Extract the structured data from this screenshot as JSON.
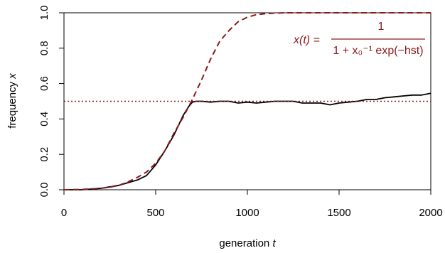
{
  "chart_data": {
    "type": "line",
    "xlabel": "generation",
    "xlabel_var": "t",
    "ylabel": "frequency",
    "ylabel_var": "x",
    "xlim": [
      0,
      2000
    ],
    "ylim": [
      0,
      1
    ],
    "x_ticks": [
      0,
      500,
      1000,
      1500,
      2000
    ],
    "y_ticks": [
      0.0,
      0.2,
      0.4,
      0.6,
      0.8,
      1.0
    ],
    "y_tick_labels": [
      "0.0",
      "0.2",
      "0.4",
      "0.6",
      "0.8",
      "1.0"
    ],
    "colors": {
      "theory": "#8b1a1a",
      "simulation": "#000000"
    },
    "equation": {
      "lhs": "x(t) =",
      "numerator": "1",
      "denominator": "1 + x₀⁻¹ exp(−hst)"
    },
    "series": [
      {
        "style": "solid",
        "x": [
          0,
          100,
          200,
          300,
          350,
          400,
          450,
          500,
          550,
          600,
          650,
          680,
          700,
          720,
          750,
          800,
          850,
          900,
          950,
          1000,
          1050,
          1100,
          1150,
          1200,
          1250,
          1300,
          1350,
          1400,
          1450,
          1500,
          1550,
          1600,
          1650,
          1700,
          1750,
          1800,
          1850,
          1900,
          1950,
          2000
        ],
        "y": [
          0.0,
          0.0,
          0.008,
          0.025,
          0.04,
          0.055,
          0.08,
          0.14,
          0.22,
          0.31,
          0.42,
          0.47,
          0.495,
          0.5,
          0.5,
          0.495,
          0.5,
          0.5,
          0.49,
          0.495,
          0.49,
          0.495,
          0.5,
          0.5,
          0.5,
          0.49,
          0.49,
          0.49,
          0.48,
          0.49,
          0.495,
          0.5,
          0.51,
          0.51,
          0.52,
          0.525,
          0.53,
          0.535,
          0.535,
          0.545
        ]
      },
      {
        "style": "dashed",
        "x": [
          0,
          100,
          200,
          250,
          300,
          350,
          400,
          450,
          500,
          550,
          600,
          650,
          700,
          750,
          800,
          850,
          900,
          950,
          1000,
          1050,
          1100,
          1150,
          1200,
          1300,
          1500,
          1750,
          2000
        ],
        "y": [
          0.0,
          0.002,
          0.008,
          0.015,
          0.025,
          0.045,
          0.07,
          0.1,
          0.15,
          0.22,
          0.32,
          0.41,
          0.51,
          0.62,
          0.74,
          0.84,
          0.9,
          0.95,
          0.975,
          0.99,
          0.995,
          0.998,
          1.0,
          1.0,
          1.0,
          1.0,
          1.0
        ]
      },
      {
        "style": "dotted",
        "x": [
          0,
          2000
        ],
        "y": [
          0.5,
          0.5
        ]
      }
    ]
  }
}
